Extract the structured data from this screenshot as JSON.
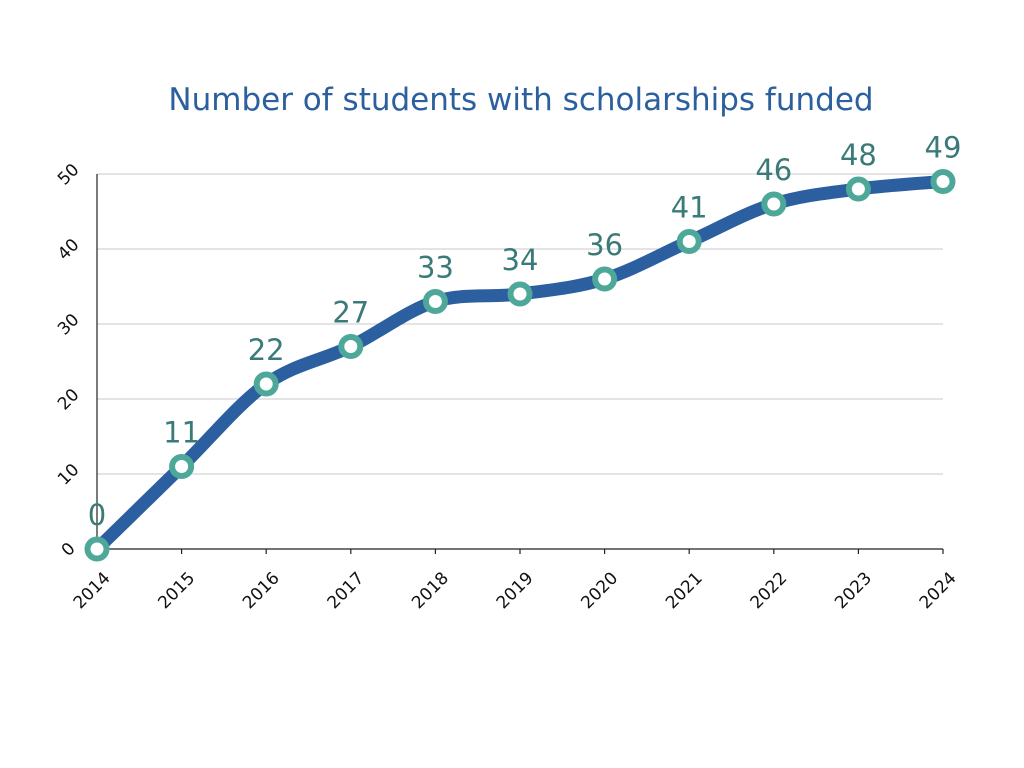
{
  "chart_data": {
    "type": "line",
    "title": "Number of students with scholarships funded",
    "xlabel": "",
    "ylabel": "",
    "categories": [
      "2014",
      "2015",
      "2016",
      "2017",
      "2018",
      "2019",
      "2020",
      "2021",
      "2022",
      "2023",
      "2024"
    ],
    "series": [
      {
        "values": [
          0,
          11,
          22,
          27,
          33,
          34,
          36,
          41,
          46,
          48,
          49
        ]
      }
    ],
    "yticks": [
      "0",
      "10",
      "20",
      "30",
      "40",
      "50"
    ],
    "ylim": [
      0,
      50
    ],
    "grid": true,
    "legend": "none",
    "colors": {
      "line": "#2c5fa0",
      "marker_ring": "#4ea89a",
      "marker_center": "#ffffff",
      "data_label": "#3a7a78",
      "title": "#2c5f9e"
    }
  }
}
